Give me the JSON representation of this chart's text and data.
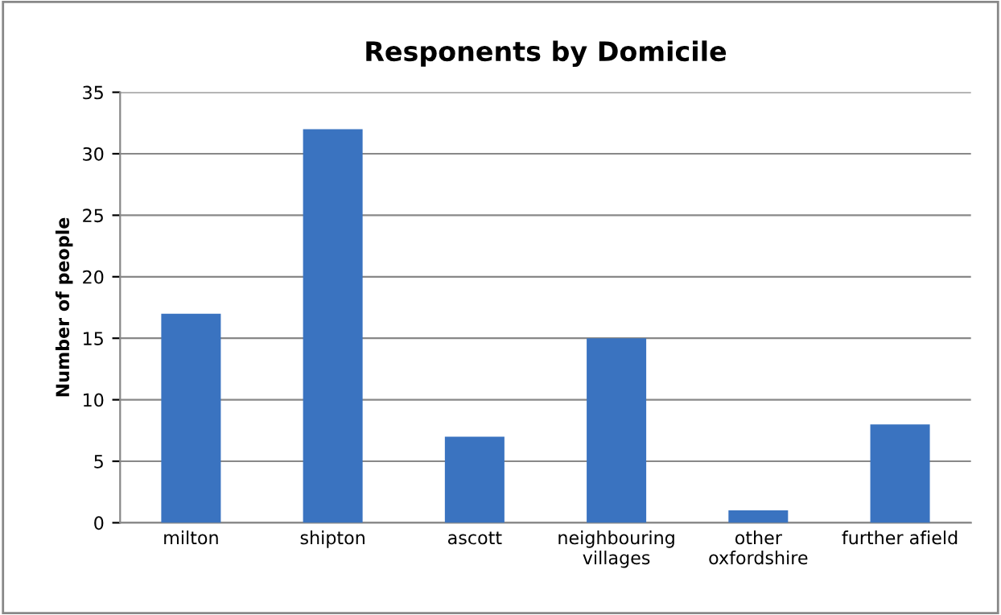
{
  "chart_data": {
    "type": "bar",
    "title": "Responents by Domicile",
    "ylabel": "Number of people",
    "categories": [
      "milton",
      "shipton",
      "ascott",
      "neighbouring\nvillages",
      "other\noxfordshire",
      "further afield"
    ],
    "values": [
      17,
      32,
      7,
      15,
      1,
      8
    ],
    "color": "#3a73c0",
    "ylim": [
      0,
      35
    ],
    "yticks": [
      0,
      5,
      10,
      15,
      20,
      25,
      30,
      35
    ],
    "grid": "y"
  }
}
